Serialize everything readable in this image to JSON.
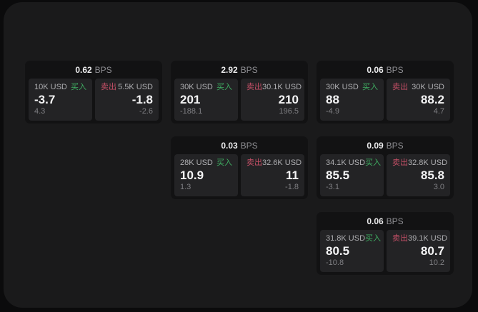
{
  "labels": {
    "bps": "BPS",
    "buy": "买入",
    "sell": "卖出"
  },
  "colors": {
    "buy_green": "#3fae62",
    "sell_red": "#c44f66",
    "card_bg": "#121213",
    "panel_bg": "#232325",
    "app_bg": "#1a1a1b"
  },
  "cards": [
    {
      "bps": "0.62",
      "buy": {
        "amount": "10K USD",
        "value": "-3.7",
        "sub": "4.3"
      },
      "sell": {
        "amount": "5.5K USD",
        "value": "-1.8",
        "sub": "-2.6"
      }
    },
    {
      "bps": "2.92",
      "buy": {
        "amount": "30K USD",
        "value": "201",
        "sub": "-188.1"
      },
      "sell": {
        "amount": "30.1K USD",
        "value": "210",
        "sub": "196.5"
      }
    },
    {
      "bps": "0.06",
      "buy": {
        "amount": "30K USD",
        "value": "88",
        "sub": "-4.9"
      },
      "sell": {
        "amount": "30K USD",
        "value": "88.2",
        "sub": "4.7"
      }
    },
    {
      "bps": "0.03",
      "buy": {
        "amount": "28K USD",
        "value": "10.9",
        "sub": "1.3"
      },
      "sell": {
        "amount": "32.6K USD",
        "value": "11",
        "sub": "-1.8"
      }
    },
    {
      "bps": "0.09",
      "buy": {
        "amount": "34.1K USD",
        "value": "85.5",
        "sub": "-3.1"
      },
      "sell": {
        "amount": "32.8K USD",
        "value": "85.8",
        "sub": "3.0"
      }
    },
    {
      "bps": "0.06",
      "buy": {
        "amount": "31.8K USD",
        "value": "80.5",
        "sub": "-10.8"
      },
      "sell": {
        "amount": "39.1K USD",
        "value": "80.7",
        "sub": "10.2"
      }
    }
  ]
}
